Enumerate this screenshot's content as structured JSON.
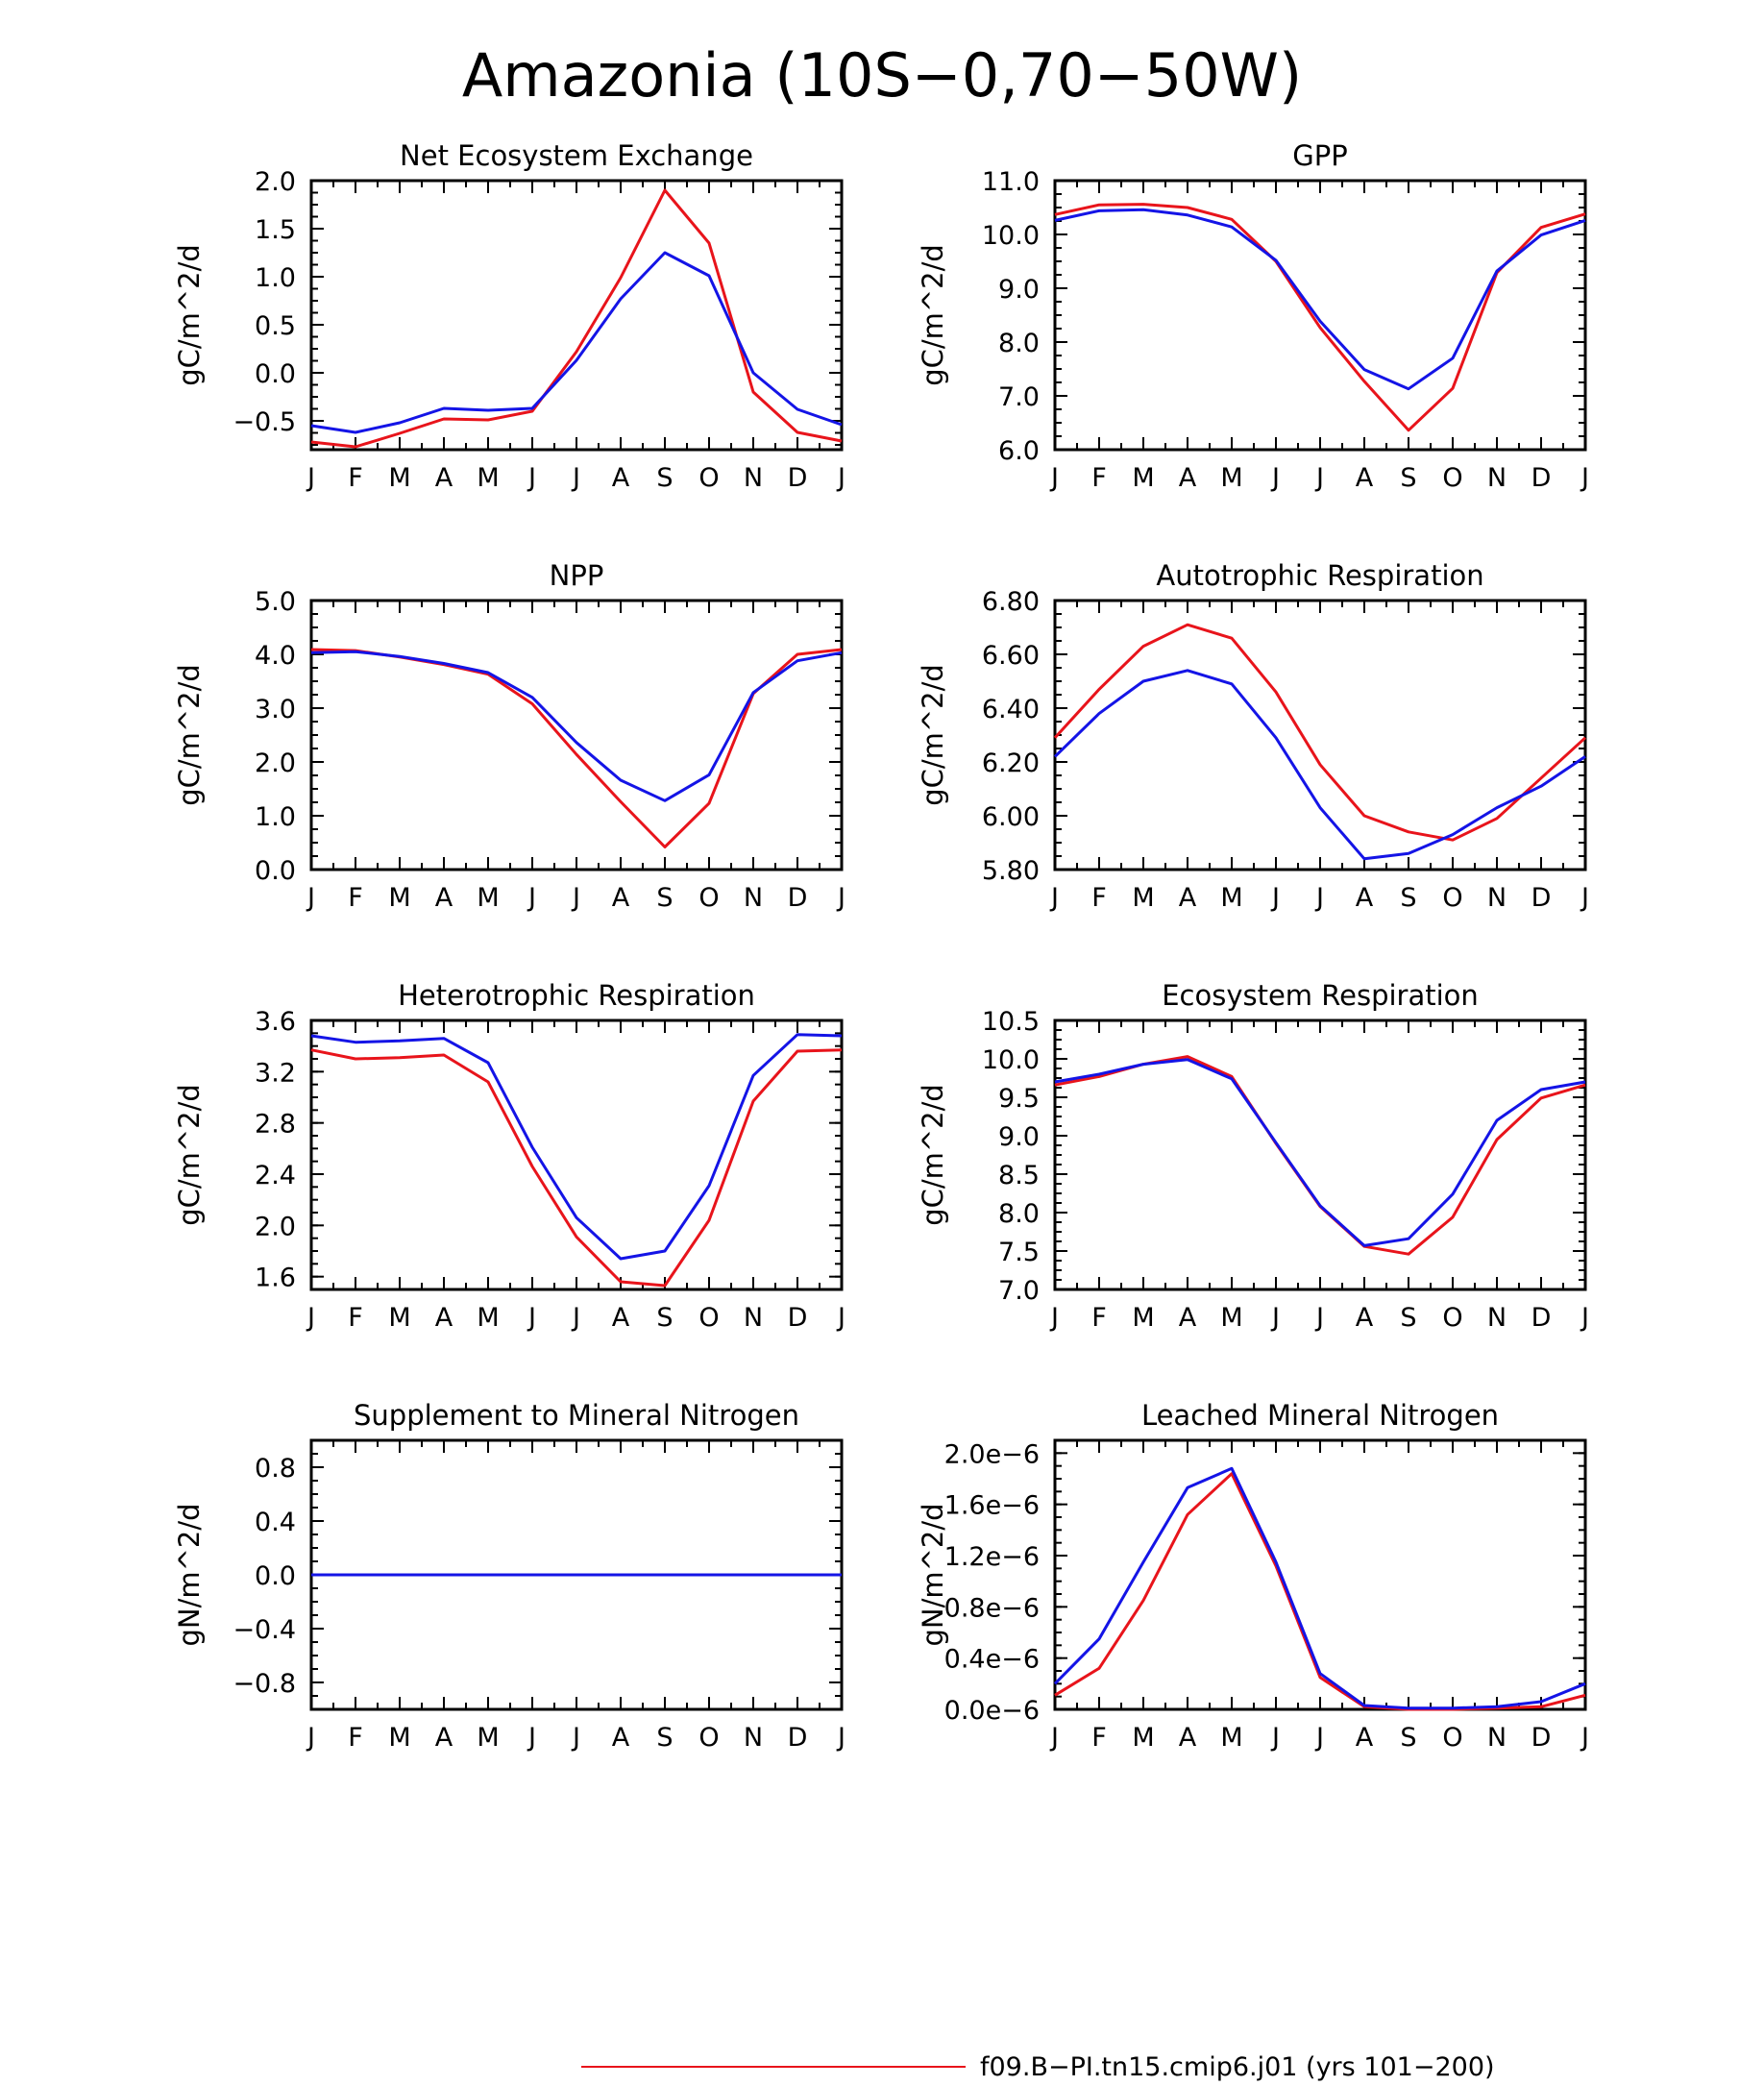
{
  "page_title": "Amazonia (10S−0,70−50W)",
  "legend": {
    "entries": [
      {
        "label": "f09.B−PI.tn15.cmip6.j01 (yrs 101−200)",
        "color": "#e8141b"
      }
    ]
  },
  "colors": {
    "red": "#e8141b",
    "blue": "#1414e6"
  },
  "chart_data": [
    {
      "type": "line",
      "title": "Net Ecosystem Exchange",
      "ylabel": "gC/m^2/d",
      "categories": [
        "J",
        "F",
        "M",
        "A",
        "M",
        "J",
        "J",
        "A",
        "S",
        "O",
        "N",
        "D",
        "J"
      ],
      "ylim": [
        -0.8,
        2.0
      ],
      "yticks": [
        -0.5,
        0.0,
        0.5,
        1.0,
        1.5,
        2.0
      ],
      "ytick_labels": [
        "−0.5",
        "0.0",
        "0.5",
        "1.0",
        "1.5",
        "2.0"
      ],
      "series": [
        {
          "color": "#e8141b",
          "values": [
            -0.72,
            -0.77,
            -0.63,
            -0.48,
            -0.49,
            -0.4,
            0.22,
            0.99,
            1.9,
            1.35,
            -0.2,
            -0.62,
            -0.71
          ]
        },
        {
          "color": "#1414e6",
          "values": [
            -0.55,
            -0.62,
            -0.52,
            -0.37,
            -0.39,
            -0.37,
            0.13,
            0.77,
            1.25,
            1.01,
            0.0,
            -0.38,
            -0.54
          ]
        }
      ]
    },
    {
      "type": "line",
      "title": "GPP",
      "ylabel": "gC/m^2/d",
      "categories": [
        "J",
        "F",
        "M",
        "A",
        "M",
        "J",
        "J",
        "A",
        "S",
        "O",
        "N",
        "D",
        "J"
      ],
      "ylim": [
        6.0,
        11.0
      ],
      "yticks": [
        6.0,
        7.0,
        8.0,
        9.0,
        10.0,
        11.0
      ],
      "ytick_labels": [
        "6.0",
        "7.0",
        "8.0",
        "9.0",
        "10.0",
        "11.0"
      ],
      "series": [
        {
          "color": "#e8141b",
          "values": [
            10.37,
            10.55,
            10.56,
            10.5,
            10.28,
            9.5,
            8.27,
            7.27,
            6.36,
            7.14,
            9.29,
            10.13,
            10.38
          ]
        },
        {
          "color": "#1414e6",
          "values": [
            10.26,
            10.44,
            10.46,
            10.36,
            10.14,
            9.52,
            8.39,
            7.49,
            7.13,
            7.7,
            9.32,
            9.99,
            10.26
          ]
        }
      ]
    },
    {
      "type": "line",
      "title": "NPP",
      "ylabel": "gC/m^2/d",
      "categories": [
        "J",
        "F",
        "M",
        "A",
        "M",
        "J",
        "J",
        "A",
        "S",
        "O",
        "N",
        "D",
        "J"
      ],
      "ylim": [
        0.0,
        5.0
      ],
      "yticks": [
        0.0,
        1.0,
        2.0,
        3.0,
        4.0,
        5.0
      ],
      "ytick_labels": [
        "0.0",
        "1.0",
        "2.0",
        "3.0",
        "4.0",
        "5.0"
      ],
      "series": [
        {
          "color": "#e8141b",
          "values": [
            4.09,
            4.07,
            3.95,
            3.81,
            3.63,
            3.08,
            2.14,
            1.26,
            0.42,
            1.23,
            3.27,
            4.0,
            4.09
          ]
        },
        {
          "color": "#1414e6",
          "values": [
            4.03,
            4.05,
            3.96,
            3.83,
            3.66,
            3.2,
            2.36,
            1.66,
            1.28,
            1.76,
            3.29,
            3.88,
            4.03
          ]
        }
      ]
    },
    {
      "type": "line",
      "title": "Autotrophic Respiration",
      "ylabel": "gC/m^2/d",
      "categories": [
        "J",
        "F",
        "M",
        "A",
        "M",
        "J",
        "J",
        "A",
        "S",
        "O",
        "N",
        "D",
        "J"
      ],
      "ylim": [
        5.8,
        6.8
      ],
      "yticks": [
        5.8,
        6.0,
        6.2,
        6.4,
        6.6,
        6.8
      ],
      "ytick_labels": [
        "5.80",
        "6.00",
        "6.20",
        "6.40",
        "6.60",
        "6.80"
      ],
      "series": [
        {
          "color": "#e8141b",
          "values": [
            6.29,
            6.47,
            6.63,
            6.71,
            6.66,
            6.46,
            6.19,
            6.0,
            5.94,
            5.91,
            5.99,
            6.14,
            6.29
          ]
        },
        {
          "color": "#1414e6",
          "values": [
            6.22,
            6.38,
            6.5,
            6.54,
            6.49,
            6.29,
            6.03,
            5.84,
            5.86,
            5.93,
            6.03,
            6.11,
            6.22
          ]
        }
      ]
    },
    {
      "type": "line",
      "title": "Heterotrophic Respiration",
      "ylabel": "gC/m^2/d",
      "categories": [
        "J",
        "F",
        "M",
        "A",
        "M",
        "J",
        "J",
        "A",
        "S",
        "O",
        "N",
        "D",
        "J"
      ],
      "ylim": [
        1.5,
        3.6
      ],
      "yticks": [
        1.6,
        2.0,
        2.4,
        2.8,
        3.2,
        3.6
      ],
      "ytick_labels": [
        "1.6",
        "2.0",
        "2.4",
        "2.8",
        "3.2",
        "3.6"
      ],
      "series": [
        {
          "color": "#e8141b",
          "values": [
            3.37,
            3.3,
            3.31,
            3.33,
            3.12,
            2.46,
            1.91,
            1.56,
            1.53,
            2.04,
            2.97,
            3.36,
            3.37
          ]
        },
        {
          "color": "#1414e6",
          "values": [
            3.48,
            3.43,
            3.44,
            3.46,
            3.27,
            2.61,
            2.06,
            1.74,
            1.8,
            2.31,
            3.17,
            3.49,
            3.48
          ]
        }
      ]
    },
    {
      "type": "line",
      "title": "Ecosystem Respiration",
      "ylabel": "gC/m^2/d",
      "categories": [
        "J",
        "F",
        "M",
        "A",
        "M",
        "J",
        "J",
        "A",
        "S",
        "O",
        "N",
        "D",
        "J"
      ],
      "ylim": [
        7.0,
        10.5
      ],
      "yticks": [
        7.0,
        7.5,
        8.0,
        8.5,
        9.0,
        9.5,
        10.0,
        10.5
      ],
      "ytick_labels": [
        "7.0",
        "7.5",
        "8.0",
        "8.5",
        "9.0",
        "9.5",
        "10.0",
        "10.5"
      ],
      "series": [
        {
          "color": "#e8141b",
          "values": [
            9.66,
            9.77,
            9.93,
            10.03,
            9.77,
            8.9,
            8.08,
            7.56,
            7.46,
            7.94,
            8.95,
            9.49,
            9.66
          ]
        },
        {
          "color": "#1414e6",
          "values": [
            9.7,
            9.8,
            9.93,
            9.99,
            9.74,
            8.91,
            8.09,
            7.57,
            7.66,
            8.24,
            9.2,
            9.6,
            9.7
          ]
        }
      ]
    },
    {
      "type": "line",
      "title": "Supplement to Mineral Nitrogen",
      "ylabel": "gN/m^2/d",
      "categories": [
        "J",
        "F",
        "M",
        "A",
        "M",
        "J",
        "J",
        "A",
        "S",
        "O",
        "N",
        "D",
        "J"
      ],
      "ylim": [
        -1.0,
        1.0
      ],
      "yticks": [
        -0.8,
        -0.4,
        0.0,
        0.4,
        0.8
      ],
      "ytick_labels": [
        "−0.8",
        "−0.4",
        "0.0",
        "0.4",
        "0.8"
      ],
      "series": [
        {
          "color": "#e8141b",
          "values": [
            0,
            0,
            0,
            0,
            0,
            0,
            0,
            0,
            0,
            0,
            0,
            0,
            0
          ]
        },
        {
          "color": "#1414e6",
          "values": [
            0,
            0,
            0,
            0,
            0,
            0,
            0,
            0,
            0,
            0,
            0,
            0,
            0
          ]
        }
      ]
    },
    {
      "type": "line",
      "title": "Leached Mineral Nitrogen",
      "ylabel": "gN/m^2/d",
      "categories": [
        "J",
        "F",
        "M",
        "A",
        "M",
        "J",
        "J",
        "A",
        "S",
        "O",
        "N",
        "D",
        "J"
      ],
      "ylim": [
        0.0,
        2.1e-06
      ],
      "yticks": [
        0.0,
        4e-07,
        8e-07,
        1.2e-06,
        1.6e-06,
        2e-06
      ],
      "ytick_labels": [
        "0.0e−6",
        "0.4e−6",
        "0.8e−6",
        "1.2e−6",
        "1.6e−6",
        "2.0e−6"
      ],
      "series": [
        {
          "color": "#e8141b",
          "values": [
            1.1e-07,
            3.2e-07,
            8.5e-07,
            1.52e-06,
            1.84e-06,
            1.12e-06,
            2.5e-07,
            2e-08,
            0,
            0,
            1e-08,
            2e-08,
            1.1e-07
          ]
        },
        {
          "color": "#1414e6",
          "values": [
            2e-07,
            5.5e-07,
            1.15e-06,
            1.73e-06,
            1.88e-06,
            1.15e-06,
            2.8e-07,
            3e-08,
            1e-08,
            1e-08,
            2e-08,
            6e-08,
            2e-07
          ]
        }
      ]
    }
  ]
}
